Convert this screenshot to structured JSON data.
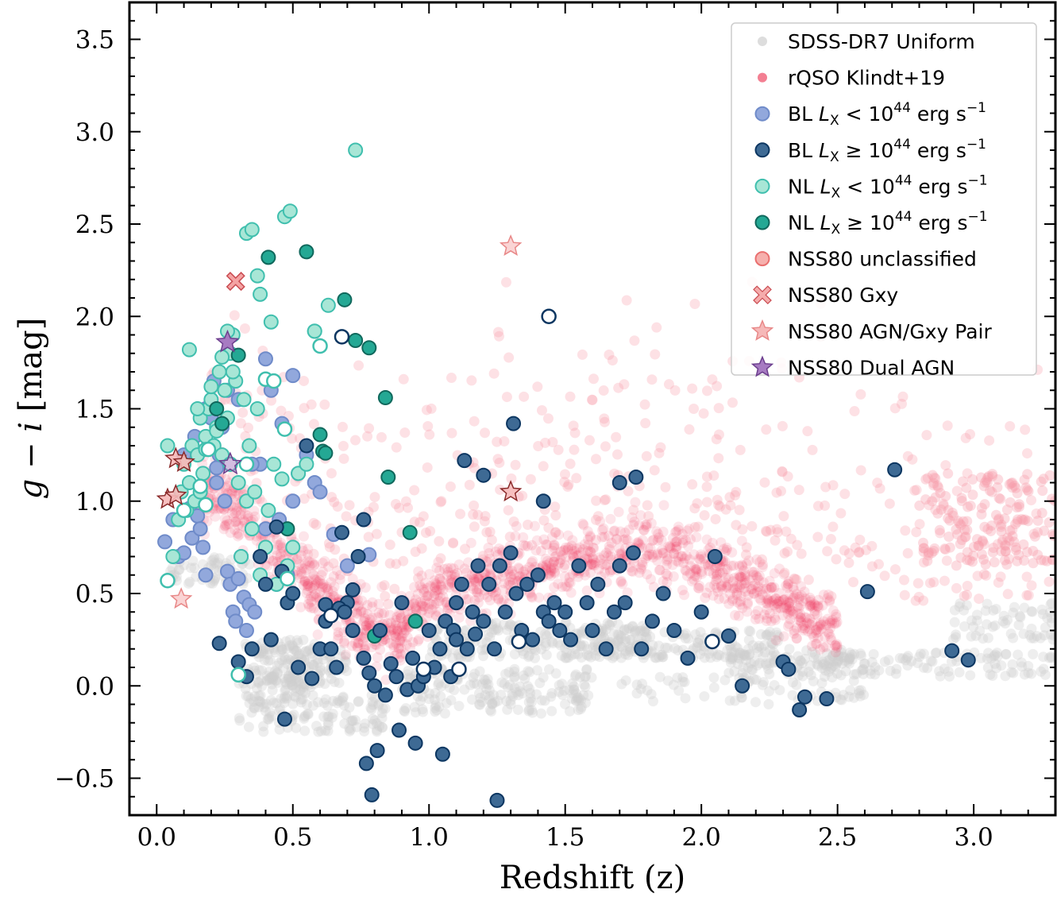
{
  "chart_data": {
    "type": "scatter",
    "title": "",
    "xlabel": "Redshift (z)",
    "ylabel": "g − i [mag]",
    "ylabel_g": "g",
    "ylabel_minus": " − ",
    "ylabel_i": "i",
    "ylabel_unit": " [mag]",
    "xlim": [
      -0.1,
      3.3
    ],
    "ylim": [
      -0.7,
      3.7
    ],
    "grid": false,
    "legend_position": "top-right",
    "x_ticks": [
      0.0,
      0.5,
      1.0,
      1.5,
      2.0,
      2.5,
      3.0
    ],
    "x_tick_labels": [
      "0.0",
      "0.5",
      "1.0",
      "1.5",
      "2.0",
      "2.5",
      "3.0"
    ],
    "y_ticks": [
      -0.5,
      0.0,
      0.5,
      1.0,
      1.5,
      2.0,
      2.5,
      3.0,
      3.5
    ],
    "y_tick_labels": [
      "−0.5",
      "0.0",
      "0.5",
      "1.0",
      "1.5",
      "2.0",
      "2.5",
      "3.0",
      "3.5"
    ],
    "colors": {
      "sdss": "#cfcfcf",
      "rqso": "#f2365a",
      "rqso_sparse": "#f79aaa",
      "bl_low": "#92a8dc",
      "bl_low_edge": "#6f8bc9",
      "bl_high": "#3e6a94",
      "bl_high_edge": "#0c3661",
      "nl_low": "#a8e6d6",
      "nl_low_edge": "#40bfae",
      "nl_high": "#24a894",
      "nl_high_edge": "#10685c",
      "nss_unclassified": "#f6b0ad",
      "nss_unclassified_edge": "#e96f6f",
      "nss_gxy": "#f4a3a3",
      "nss_gxy_edge": "#c94a50",
      "nss_pair": "#f6b8b8",
      "nss_pair_edge": "#e88888",
      "nss_dual": "#a77bc2",
      "nss_dual_edge": "#6d3f8e"
    },
    "legend": [
      {
        "label": "SDSS-DR7 Uniform",
        "marker": "circle",
        "color": "#dddddd"
      },
      {
        "label": "rQSO Klindt+19",
        "marker": "circle",
        "color": "#f37f92"
      },
      {
        "label_pre": "BL ",
        "label_var": "L",
        "label_sub": "X",
        "label_op": " < 10",
        "label_exp": "44",
        "label_unit": " erg s",
        "label_unitexp": "−1",
        "marker": "circle",
        "color": "#92a8dc"
      },
      {
        "label_pre": "BL ",
        "label_var": "L",
        "label_sub": "X",
        "label_op": " ≥ 10",
        "label_exp": "44",
        "label_unit": " erg s",
        "label_unitexp": "−1",
        "marker": "circle",
        "color": "#3e6a94"
      },
      {
        "label_pre": "NL ",
        "label_var": "L",
        "label_sub": "X",
        "label_op": " < 10",
        "label_exp": "44",
        "label_unit": " erg s",
        "label_unitexp": "−1",
        "marker": "circle",
        "color": "#a8e6d6"
      },
      {
        "label_pre": "NL ",
        "label_var": "L",
        "label_sub": "X",
        "label_op": " ≥ 10",
        "label_exp": "44",
        "label_unit": " erg s",
        "label_unitexp": "−1",
        "marker": "circle",
        "color": "#24a894"
      },
      {
        "label": "NSS80 unclassified",
        "marker": "circle",
        "color": "#f6b0ad"
      },
      {
        "label": "NSS80 Gxy",
        "marker": "x",
        "color": "#f4a3a3"
      },
      {
        "label": "NSS80 AGN/Gxy Pair",
        "marker": "star",
        "color": "#f6b8b8"
      },
      {
        "label": "NSS80 Dual AGN",
        "marker": "star",
        "color": "#a77bc2"
      }
    ],
    "series": [
      {
        "name": "SDSS-DR7 Uniform",
        "kind": "density-bands",
        "bands": [
          {
            "x": [
              0.3,
              0.6
            ],
            "y": [
              -0.1,
              0.25
            ],
            "n": 140
          },
          {
            "x": [
              0.4,
              0.7
            ],
            "y": [
              0.0,
              0.2
            ],
            "n": 80
          },
          {
            "x": [
              0.3,
              0.85
            ],
            "y": [
              -0.25,
              -0.05
            ],
            "n": 110
          },
          {
            "x": [
              0.05,
              0.35
            ],
            "y": [
              0.55,
              0.7
            ],
            "n": 60
          },
          {
            "x": [
              0.9,
              1.6
            ],
            "y": [
              -0.15,
              0.1
            ],
            "n": 180
          },
          {
            "x": [
              1.0,
              1.8
            ],
            "y": [
              0.15,
              0.35
            ],
            "n": 200
          },
          {
            "x": [
              1.6,
              2.3
            ],
            "y": [
              0.15,
              0.3
            ],
            "n": 140
          },
          {
            "x": [
              2.1,
              2.6
            ],
            "y": [
              0.05,
              0.2
            ],
            "n": 90
          },
          {
            "x": [
              2.4,
              3.3
            ],
            "y": [
              0.05,
              0.18
            ],
            "n": 110
          },
          {
            "x": [
              2.9,
              3.3
            ],
            "y": [
              0.25,
              0.45
            ],
            "n": 60
          },
          {
            "x": [
              1.7,
              2.6
            ],
            "y": [
              -0.1,
              0.05
            ],
            "n": 70
          }
        ]
      },
      {
        "name": "rQSO Klindt+19",
        "kind": "density-curve",
        "ridge": [
          [
            0.15,
            1.05
          ],
          [
            0.3,
            0.95
          ],
          [
            0.45,
            0.7
          ],
          [
            0.6,
            0.5
          ],
          [
            0.75,
            0.35
          ],
          [
            0.85,
            0.25
          ],
          [
            0.95,
            0.4
          ],
          [
            1.05,
            0.55
          ],
          [
            1.2,
            0.55
          ],
          [
            1.4,
            0.65
          ],
          [
            1.6,
            0.7
          ],
          [
            1.8,
            0.75
          ],
          [
            1.95,
            0.7
          ],
          [
            2.1,
            0.6
          ],
          [
            2.3,
            0.45
          ],
          [
            2.5,
            0.3
          ]
        ],
        "n_dense": 1400,
        "n_sparse": 420,
        "sparse_x": [
          0.2,
          3.3
        ],
        "sparse_y": [
          0.4,
          3.3
        ]
      },
      {
        "name": "BL L_X < 10^44",
        "x": [
          0.03,
          0.06,
          0.08,
          0.1,
          0.12,
          0.13,
          0.15,
          0.16,
          0.17,
          0.18,
          0.19,
          0.2,
          0.21,
          0.22,
          0.23,
          0.24,
          0.25,
          0.26,
          0.27,
          0.28,
          0.29,
          0.3,
          0.31,
          0.32,
          0.33,
          0.34,
          0.36,
          0.38,
          0.4,
          0.42,
          0.44,
          0.46,
          0.48,
          0.5,
          0.52,
          0.55,
          0.58,
          0.6,
          0.65,
          0.7,
          0.78,
          0.1,
          0.14,
          0.18,
          0.22,
          0.26,
          0.3,
          0.35,
          0.4,
          0.45,
          0.5
        ],
        "y": [
          0.78,
          0.9,
          0.7,
          0.72,
          0.96,
          0.8,
          0.92,
          0.85,
          0.75,
          0.6,
          1.3,
          1.45,
          1.65,
          1.1,
          1.25,
          1.4,
          1.0,
          0.62,
          0.55,
          0.4,
          0.35,
          0.58,
          0.7,
          0.48,
          0.3,
          0.44,
          0.4,
          1.2,
          1.77,
          1.6,
          0.55,
          1.42,
          0.6,
          1.68,
          1.15,
          1.25,
          1.1,
          1.05,
          0.82,
          0.65,
          0.71,
          1.25,
          1.35,
          1.5,
          1.18,
          1.6,
          1.55,
          1.2,
          0.85,
          0.9,
          1.0
        ]
      },
      {
        "name": "BL L_X >= 10^44",
        "x": [
          0.23,
          0.3,
          0.33,
          0.35,
          0.38,
          0.4,
          0.42,
          0.44,
          0.46,
          0.48,
          0.5,
          0.52,
          0.55,
          0.57,
          0.6,
          0.62,
          0.64,
          0.66,
          0.68,
          0.7,
          0.72,
          0.74,
          0.76,
          0.78,
          0.8,
          0.82,
          0.84,
          0.86,
          0.88,
          0.9,
          0.92,
          0.94,
          0.96,
          0.98,
          1.0,
          1.02,
          1.04,
          1.06,
          1.08,
          1.1,
          1.12,
          1.14,
          1.16,
          1.18,
          1.2,
          1.22,
          1.24,
          1.26,
          1.28,
          1.3,
          1.32,
          1.34,
          1.36,
          1.38,
          1.4,
          1.42,
          1.44,
          1.46,
          1.48,
          1.5,
          1.52,
          1.55,
          1.58,
          1.6,
          1.62,
          1.65,
          1.68,
          1.7,
          1.72,
          1.75,
          1.78,
          1.82,
          1.86,
          1.9,
          1.95,
          2.0,
          2.05,
          2.1,
          2.15,
          2.3,
          2.32,
          2.36,
          2.38,
          2.46,
          2.61,
          2.71,
          2.92,
          2.98,
          0.47,
          0.62,
          0.67,
          0.69,
          0.72,
          0.77,
          0.79,
          0.81,
          0.89,
          0.95,
          1.05,
          1.09,
          1.1,
          1.17,
          1.2,
          1.31,
          1.42,
          1.7,
          1.76,
          1.25,
          1.13,
          0.76
        ],
        "y": [
          0.23,
          0.13,
          0.05,
          0.2,
          0.7,
          0.55,
          0.25,
          0.86,
          0.62,
          0.45,
          0.5,
          0.1,
          1.3,
          0.04,
          0.2,
          0.35,
          0.2,
          0.1,
          0.83,
          0.45,
          0.52,
          0.7,
          0.15,
          0.07,
          0.0,
          0.3,
          -0.05,
          0.12,
          0.05,
          0.45,
          -0.02,
          0.15,
          0.0,
          0.05,
          0.3,
          0.1,
          0.2,
          0.35,
          0.05,
          0.45,
          0.55,
          0.2,
          0.4,
          0.65,
          0.35,
          0.55,
          0.2,
          0.65,
          0.4,
          0.72,
          0.5,
          0.3,
          0.55,
          0.25,
          0.6,
          0.4,
          0.35,
          0.45,
          0.3,
          0.4,
          0.25,
          0.65,
          0.45,
          0.3,
          0.55,
          0.2,
          0.4,
          0.65,
          0.45,
          0.72,
          0.2,
          0.35,
          0.5,
          0.3,
          0.15,
          0.4,
          0.7,
          0.27,
          0.0,
          0.13,
          0.09,
          -0.13,
          -0.06,
          -0.07,
          0.51,
          1.17,
          0.19,
          0.14,
          -0.18,
          0.44,
          0.42,
          0.4,
          0.3,
          -0.42,
          -0.59,
          -0.35,
          -0.24,
          -0.31,
          -0.37,
          0.3,
          0.25,
          0.28,
          1.14,
          1.42,
          1.0,
          1.1,
          1.13,
          -0.62,
          1.22,
          0.9
        ]
      },
      {
        "name": "NL L_X < 10^44",
        "x": [
          0.04,
          0.06,
          0.08,
          0.09,
          0.1,
          0.11,
          0.12,
          0.13,
          0.14,
          0.15,
          0.16,
          0.17,
          0.18,
          0.19,
          0.2,
          0.21,
          0.22,
          0.23,
          0.24,
          0.25,
          0.26,
          0.27,
          0.28,
          0.29,
          0.3,
          0.31,
          0.32,
          0.33,
          0.34,
          0.35,
          0.36,
          0.37,
          0.38,
          0.4,
          0.41,
          0.42,
          0.43,
          0.44,
          0.46,
          0.48,
          0.5,
          0.52,
          0.55,
          0.58,
          0.73,
          0.33,
          0.35,
          0.37,
          0.47,
          0.49,
          0.38,
          0.58,
          0.63,
          0.12,
          0.15,
          0.18,
          0.2,
          0.22,
          0.24,
          0.26,
          0.28,
          0.16
        ],
        "y": [
          1.3,
          0.7,
          0.9,
          1.05,
          1.2,
          0.95,
          1.1,
          1.3,
          1.0,
          1.25,
          1.45,
          1.15,
          1.35,
          1.5,
          1.55,
          1.3,
          1.4,
          1.7,
          1.25,
          1.6,
          1.45,
          1.8,
          1.9,
          1.65,
          1.1,
          0.7,
          1.55,
          1.0,
          1.3,
          0.85,
          1.05,
          1.5,
          0.6,
          0.75,
          0.95,
          1.97,
          1.2,
          0.55,
          1.12,
          0.65,
          0.75,
          1.15,
          1.2,
          1.92,
          2.9,
          2.45,
          2.47,
          2.22,
          2.54,
          2.57,
          2.12,
          1.92,
          2.06,
          1.82,
          1.5,
          1.28,
          1.62,
          1.38,
          1.78,
          1.92,
          1.7,
          1.05
        ]
      },
      {
        "name": "NL L_X >= 10^44",
        "x": [
          0.24,
          0.3,
          0.41,
          0.48,
          0.55,
          0.61,
          0.69,
          0.73,
          0.78,
          0.84,
          0.85,
          0.93,
          0.95,
          0.62,
          0.6,
          0.22,
          0.8
        ],
        "y": [
          1.42,
          1.79,
          2.32,
          0.85,
          2.35,
          1.27,
          2.09,
          1.87,
          1.83,
          1.56,
          1.13,
          0.83,
          0.35,
          1.26,
          1.36,
          1.5,
          0.27
        ]
      },
      {
        "name": "NSS80 unclassified (open)",
        "x": [
          0.04,
          0.1,
          0.16,
          0.18,
          0.19,
          0.3,
          0.33,
          0.47,
          0.48,
          0.6,
          0.64,
          0.68,
          0.98,
          1.11,
          1.33,
          1.44,
          2.04,
          0.4,
          0.43,
          0.27
        ],
        "y": [
          0.57,
          0.95,
          1.08,
          0.98,
          1.28,
          0.06,
          1.2,
          1.39,
          0.58,
          1.84,
          0.38,
          1.89,
          0.09,
          0.09,
          0.24,
          2.0,
          0.24,
          1.66,
          1.65,
          1.2
        ]
      },
      {
        "name": "NSS80 Gxy",
        "x": [
          0.29
        ],
        "y": [
          2.19
        ]
      },
      {
        "name": "NSS80 AGN/Gxy Pair",
        "x": [
          1.3,
          1.3,
          0.07,
          0.1,
          0.04,
          0.07,
          0.09
        ],
        "y": [
          2.38,
          1.05,
          1.23,
          1.21,
          1.01,
          1.03,
          0.47
        ]
      },
      {
        "name": "NSS80 Dual AGN",
        "x": [
          0.26,
          0.27
        ],
        "y": [
          1.86,
          1.2
        ]
      }
    ]
  }
}
